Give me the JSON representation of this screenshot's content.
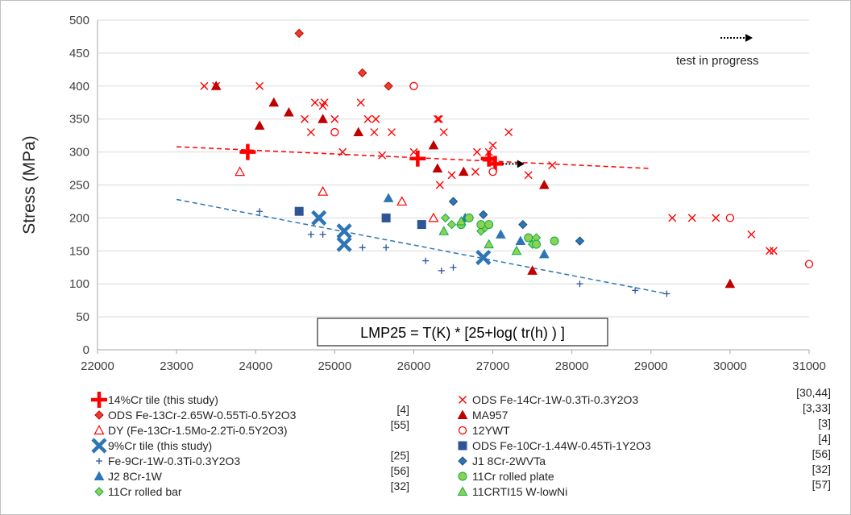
{
  "chart_data": {
    "type": "scatter",
    "title": "",
    "xlabel": "",
    "ylabel": "Stress (MPa)",
    "xlim": [
      22000,
      31000
    ],
    "ylim": [
      0,
      500
    ],
    "xticks": [
      22000,
      23000,
      24000,
      25000,
      26000,
      27000,
      28000,
      29000,
      30000,
      31000
    ],
    "yticks": [
      0,
      50,
      100,
      150,
      200,
      250,
      300,
      350,
      400,
      450,
      500
    ],
    "grid": "horizontal",
    "formula": "LMP25 = T(K) * [25+log( tr(h) ) ]",
    "annotation": "test in progress",
    "series": [
      {
        "name": "14%Cr tile (this study)",
        "ref": "",
        "marker": "plus-thick",
        "color": "#ff0000",
        "points": [
          [
            23900,
            300
          ],
          [
            26050,
            290
          ],
          [
            26950,
            290
          ],
          [
            27030,
            282
          ]
        ]
      },
      {
        "name": "ODS Fe-13Cr-2.65W-0.55Ti-0.5Y2O3",
        "ref": "[4]",
        "marker": "diamond",
        "color": "#e8402a",
        "stroke": "#c00000",
        "points": [
          [
            24550,
            480
          ],
          [
            25350,
            420
          ],
          [
            25680,
            400
          ]
        ]
      },
      {
        "name": "DY (Fe-13Cr-1.5Mo-2.2Ti-0.5Y2O3)",
        "ref": "[55]",
        "marker": "triangle-open",
        "color": "#ff0000",
        "points": [
          [
            23800,
            270
          ],
          [
            24850,
            240
          ],
          [
            25850,
            225
          ],
          [
            26250,
            200
          ]
        ]
      },
      {
        "name": "9%Cr tile (this study)",
        "ref": "",
        "marker": "x-thick",
        "color": "#2e75b6",
        "points": [
          [
            24800,
            200
          ],
          [
            25120,
            180
          ],
          [
            25120,
            160
          ],
          [
            26880,
            140
          ]
        ]
      },
      {
        "name": "Fe-9Cr-1W-0.3Ti-0.3Y2O3",
        "ref": "[25]",
        "marker": "plus-thin",
        "color": "#2f5597",
        "points": [
          [
            24050,
            210
          ],
          [
            24700,
            175
          ],
          [
            24850,
            175
          ],
          [
            25350,
            155
          ],
          [
            25650,
            155
          ],
          [
            26150,
            135
          ],
          [
            26350,
            120
          ],
          [
            26500,
            125
          ],
          [
            28100,
            100
          ],
          [
            28800,
            90
          ],
          [
            29200,
            85
          ]
        ]
      },
      {
        "name": "J2  8Cr-1W",
        "ref": "[56]",
        "marker": "triangle",
        "color": "#2e75b6",
        "points": [
          [
            25680,
            230
          ],
          [
            26650,
            200
          ],
          [
            27100,
            175
          ],
          [
            27350,
            165
          ],
          [
            27650,
            145
          ]
        ]
      },
      {
        "name": "11Cr rolled bar",
        "ref": "[32]",
        "marker": "diamond",
        "color": "#92d050",
        "stroke": "#00b050",
        "points": [
          [
            26400,
            200
          ],
          [
            26480,
            190
          ],
          [
            26700,
            200
          ],
          [
            26850,
            180
          ],
          [
            26900,
            185
          ],
          [
            27500,
            160
          ],
          [
            27550,
            170
          ]
        ]
      },
      {
        "name": "ODS Fe-14Cr-1W-0.3Ti-0.3Y2O3",
        "ref": "[30,44]",
        "marker": "x",
        "color": "#ff0000",
        "points": [
          [
            23350,
            400
          ],
          [
            23500,
            400
          ],
          [
            24050,
            400
          ],
          [
            24750,
            375
          ],
          [
            24870,
            375
          ],
          [
            24850,
            370
          ],
          [
            24700,
            330
          ],
          [
            24620,
            350
          ],
          [
            25000,
            350
          ],
          [
            25100,
            300
          ],
          [
            25330,
            375
          ],
          [
            25420,
            350
          ],
          [
            25520,
            350
          ],
          [
            25500,
            330
          ],
          [
            25720,
            330
          ],
          [
            25600,
            295
          ],
          [
            26000,
            300
          ],
          [
            26300,
            350
          ],
          [
            26320,
            350
          ],
          [
            26380,
            330
          ],
          [
            26330,
            250
          ],
          [
            26480,
            265
          ],
          [
            26780,
            270
          ],
          [
            26800,
            300
          ],
          [
            26950,
            300
          ],
          [
            27000,
            310
          ],
          [
            27200,
            330
          ],
          [
            27450,
            265
          ],
          [
            27750,
            280
          ],
          [
            29270,
            200
          ],
          [
            29520,
            200
          ],
          [
            29820,
            200
          ],
          [
            30270,
            175
          ],
          [
            30500,
            150
          ],
          [
            30550,
            150
          ]
        ]
      },
      {
        "name": "MA957",
        "ref": "[3,33]",
        "marker": "triangle",
        "color": "#c00000",
        "points": [
          [
            23500,
            400
          ],
          [
            24050,
            340
          ],
          [
            24230,
            375
          ],
          [
            24420,
            360
          ],
          [
            24850,
            350
          ],
          [
            25300,
            330
          ],
          [
            26250,
            310
          ],
          [
            26300,
            275
          ],
          [
            26630,
            270
          ],
          [
            27650,
            250
          ],
          [
            27500,
            120
          ],
          [
            30000,
            100
          ]
        ]
      },
      {
        "name": "12YWT",
        "ref": "[3]",
        "marker": "circle-open",
        "color": "#ff0000",
        "points": [
          [
            26000,
            400
          ],
          [
            25000,
            330
          ],
          [
            27000,
            270
          ],
          [
            30000,
            200
          ],
          [
            31000,
            130
          ]
        ]
      },
      {
        "name": "ODS Fe-10Cr-1.44W-0.45Ti-1Y2O3",
        "ref": "[4]",
        "marker": "square",
        "color": "#2f5597",
        "points": [
          [
            24550,
            210
          ],
          [
            25650,
            200
          ],
          [
            26100,
            190
          ]
        ]
      },
      {
        "name": "J1  8Cr-2WVTa",
        "ref": "[56]",
        "marker": "diamond",
        "color": "#2e75b6",
        "stroke": "#1f4e79",
        "points": [
          [
            26500,
            225
          ],
          [
            26880,
            205
          ],
          [
            27380,
            190
          ],
          [
            28100,
            165
          ]
        ]
      },
      {
        "name": "11Cr rolled plate",
        "ref": "[32]",
        "marker": "circle",
        "color": "#92d050",
        "stroke": "#00b050",
        "points": [
          [
            26600,
            190
          ],
          [
            26700,
            200
          ],
          [
            26850,
            190
          ],
          [
            26950,
            190
          ],
          [
            27450,
            170
          ],
          [
            27550,
            160
          ],
          [
            27780,
            165
          ]
        ]
      },
      {
        "name": "11CRTI15 W-lowNi",
        "ref": "[57]",
        "marker": "triangle",
        "color": "#92d050",
        "stroke": "#00b050",
        "points": [
          [
            26380,
            180
          ],
          [
            26600,
            195
          ],
          [
            26950,
            160
          ],
          [
            27300,
            150
          ]
        ]
      }
    ],
    "trendlines": [
      {
        "name": "14%Cr trend",
        "color": "#ff0000",
        "points": [
          [
            23000,
            308
          ],
          [
            29000,
            275
          ]
        ]
      },
      {
        "name": "9%Cr trend",
        "color": "#2e75b6",
        "points": [
          [
            23000,
            228
          ],
          [
            29200,
            85
          ]
        ]
      }
    ]
  }
}
